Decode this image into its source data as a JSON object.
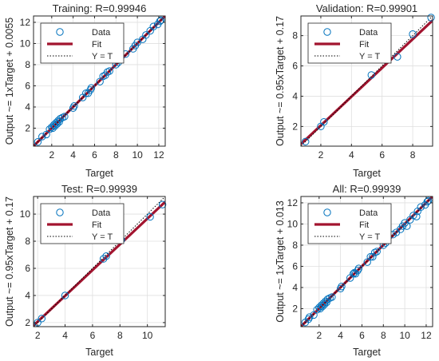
{
  "chart_data": [
    {
      "type": "scatter",
      "title": "Training: R=0.99946",
      "xlabel": "Target",
      "ylabel": "Output ~= 1xTarget + 0.0055",
      "xlim": [
        0.3,
        12.6
      ],
      "ylim": [
        0.3,
        12.6
      ],
      "xticks": [
        2,
        4,
        6,
        8,
        10,
        12
      ],
      "yticks": [
        2,
        4,
        6,
        8,
        10,
        12
      ],
      "legend": [
        "Data",
        "Fit",
        "Y = T"
      ],
      "legend_position": "top-left",
      "fit": {
        "slope": 1,
        "intercept": 0.0055
      },
      "series": [
        {
          "x": [
            0.7,
            1.1,
            1.5,
            1.8,
            2.0,
            2.1,
            2.2,
            2.3,
            2.4,
            2.5,
            2.6,
            2.7,
            2.8,
            3.0,
            3.2,
            4.0,
            4.1,
            4.9,
            5.2,
            5.4,
            5.6,
            5.7,
            6.5,
            6.8,
            7.0,
            7.2,
            7.4,
            8.0,
            8.2,
            8.9,
            9.6,
            9.8,
            10.0,
            10.5,
            10.8,
            11.2,
            11.5,
            11.9,
            12.1,
            12.2
          ],
          "y": [
            0.7,
            1.2,
            1.4,
            1.9,
            2.1,
            2.0,
            2.3,
            2.2,
            2.5,
            2.4,
            2.7,
            2.6,
            2.9,
            3.0,
            3.1,
            3.9,
            4.1,
            4.9,
            5.3,
            5.3,
            5.6,
            5.8,
            6.4,
            6.9,
            7.0,
            7.3,
            7.4,
            8.0,
            8.2,
            9.0,
            9.5,
            9.8,
            10.1,
            10.4,
            10.8,
            11.2,
            11.6,
            11.8,
            12.1,
            12.2
          ]
        }
      ]
    },
    {
      "type": "scatter",
      "title": "Validation: R=0.99901",
      "xlabel": "Target",
      "ylabel": "Output ~= 0.95xTarget + 0.17",
      "xlim": [
        0.7,
        9.3
      ],
      "ylim": [
        0.7,
        9.3
      ],
      "xticks": [
        2,
        4,
        6,
        8
      ],
      "yticks": [
        2,
        4,
        6,
        8
      ],
      "legend": [
        "Data",
        "Fit",
        "Y = T"
      ],
      "legend_position": "top-left",
      "fit": {
        "slope": 0.95,
        "intercept": 0.17
      },
      "series": [
        {
          "x": [
            1.0,
            2.0,
            2.2,
            5.3,
            7.0,
            8.0,
            9.2
          ],
          "y": [
            1.0,
            2.0,
            2.3,
            5.4,
            6.6,
            8.1,
            9.2
          ]
        }
      ]
    },
    {
      "type": "scatter",
      "title": "Test: R=0.99939",
      "xlabel": "Target",
      "ylabel": "Output ~= 0.95xTarget + 0.17",
      "xlim": [
        1.7,
        11.3
      ],
      "ylim": [
        1.7,
        11.3
      ],
      "xticks": [
        2,
        4,
        6,
        8,
        10
      ],
      "yticks": [
        2,
        4,
        6,
        8,
        10
      ],
      "legend": [
        "Data",
        "Fit",
        "Y = T"
      ],
      "legend_position": "top-left",
      "fit": {
        "slope": 0.95,
        "intercept": 0.17
      },
      "series": [
        {
          "x": [
            2.0,
            2.3,
            4.0,
            6.8,
            7.0,
            8.1,
            10.2,
            11.1
          ],
          "y": [
            2.0,
            2.3,
            4.0,
            6.7,
            6.9,
            8.1,
            9.8,
            10.7
          ]
        }
      ]
    },
    {
      "type": "scatter",
      "title": "All: R=0.99939",
      "xlabel": "Target",
      "ylabel": "Output ~= 1xTarget + 0.013",
      "xlim": [
        0.3,
        12.6
      ],
      "ylim": [
        0.3,
        12.6
      ],
      "xticks": [
        2,
        4,
        6,
        8,
        10,
        12
      ],
      "yticks": [
        2,
        4,
        6,
        8,
        10,
        12
      ],
      "legend": [
        "Data",
        "Fit",
        "Y = T"
      ],
      "legend_position": "top-left",
      "fit": {
        "slope": 1,
        "intercept": 0.013
      },
      "series": [
        {
          "x": [
            0.7,
            1.0,
            1.1,
            1.5,
            1.8,
            2.0,
            2.1,
            2.2,
            2.3,
            2.4,
            2.5,
            2.6,
            2.7,
            2.8,
            3.0,
            3.2,
            4.0,
            4.1,
            4.9,
            5.2,
            5.3,
            5.4,
            5.6,
            5.7,
            6.5,
            6.8,
            7.0,
            7.2,
            7.4,
            8.0,
            8.2,
            8.9,
            9.2,
            9.6,
            9.8,
            10.0,
            10.2,
            10.5,
            10.8,
            11.1,
            11.2,
            11.5,
            11.9,
            12.1,
            12.2
          ],
          "y": [
            0.7,
            1.0,
            1.2,
            1.4,
            1.9,
            2.1,
            2.0,
            2.3,
            2.2,
            2.5,
            2.4,
            2.7,
            2.6,
            2.9,
            3.0,
            3.1,
            3.9,
            4.1,
            4.9,
            5.3,
            5.4,
            5.3,
            5.6,
            5.8,
            6.4,
            6.9,
            6.9,
            7.3,
            7.4,
            8.0,
            8.2,
            9.0,
            9.2,
            9.5,
            9.8,
            10.1,
            9.8,
            10.4,
            10.8,
            10.7,
            11.2,
            11.6,
            11.8,
            12.1,
            12.2
          ]
        }
      ]
    }
  ]
}
